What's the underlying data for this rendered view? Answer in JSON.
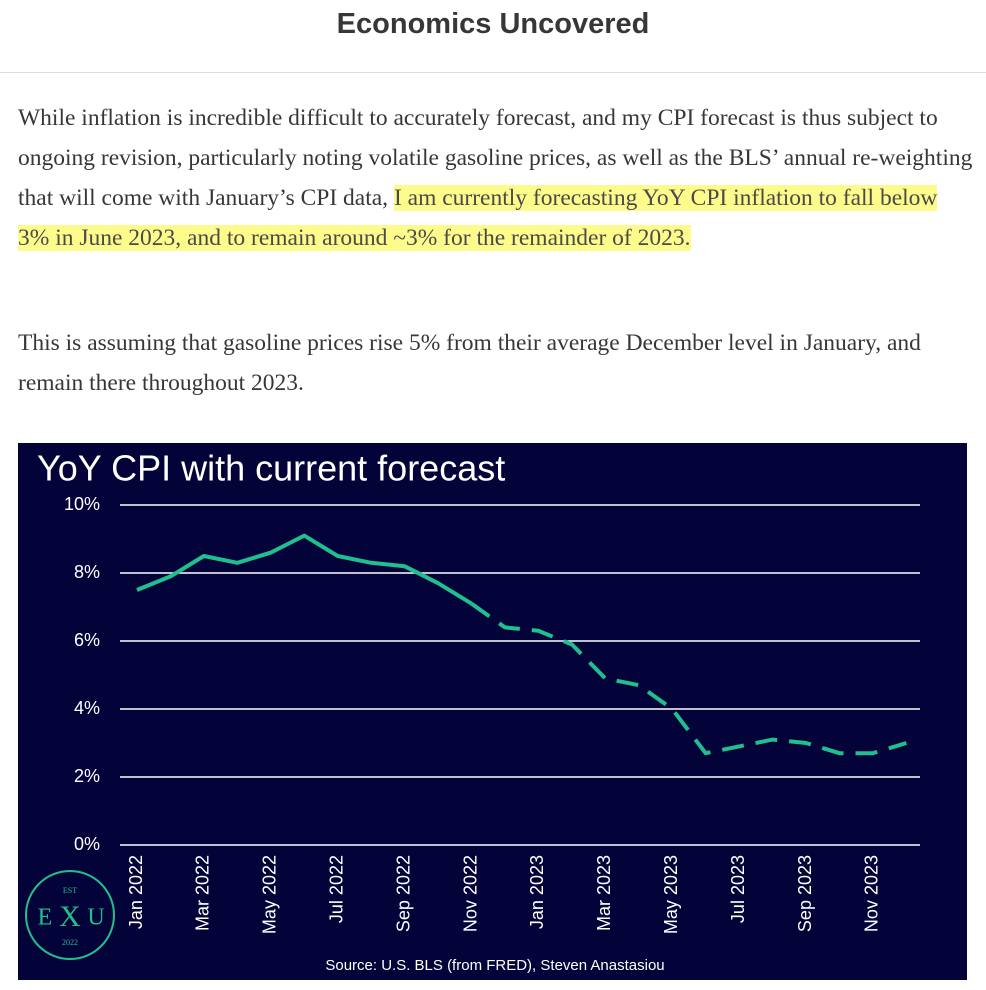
{
  "header": {
    "title": "Economics Uncovered"
  },
  "paragraphs": [
    {
      "text": "While inflation is incredible difficult to accurately forecast, and my CPI forecast is thus subject to ongoing revision, particularly noting volatile gasoline prices, as well as the BLS’ annual re-weighting that will come with January’s CPI data,",
      "highlight": "I am currently forecasting YoY CPI inflation to fall below 3% in June 2023, and to remain around ~3% for the remainder of 2023."
    },
    "This is assuming that gasoline prices rise 5% from their average December level in January, and remain there throughout 2023."
  ],
  "chart_data": {
    "type": "line",
    "title": "YoY CPI with current forecast",
    "categories": [
      "Jan 2022",
      null,
      "Mar 2022",
      null,
      "May 2022",
      null,
      "Jul 2022",
      null,
      "Sep 2022",
      null,
      "Nov 2022",
      null,
      "Jan 2023",
      null,
      "Mar 2023",
      null,
      "May 2023",
      null,
      "Jul 2023",
      null,
      "Sep 2023",
      null,
      "Nov 2023",
      null
    ],
    "series": [
      {
        "color": "#1fbf8f",
        "dashed": false,
        "values": [
          7.5,
          7.9,
          8.5,
          8.3,
          8.6,
          9.1,
          8.5,
          8.3,
          8.2,
          7.7,
          7.1,
          null,
          null,
          null,
          null,
          null,
          null,
          null,
          null,
          null,
          null,
          null,
          null,
          null
        ]
      },
      {
        "color": "#1fbf8f",
        "dashed": true,
        "values": [
          null,
          null,
          null,
          null,
          null,
          null,
          null,
          null,
          null,
          null,
          7.1,
          6.4,
          6.3,
          5.9,
          4.9,
          4.7,
          4.0,
          2.7,
          2.9,
          3.1,
          3.0,
          2.7,
          2.7,
          3.0
        ]
      }
    ],
    "ylim": [
      0,
      10
    ],
    "yticks": [
      {
        "value": 0,
        "label": "0%"
      },
      {
        "value": 2,
        "label": "2%"
      },
      {
        "value": 4,
        "label": "4%"
      },
      {
        "value": 6,
        "label": "6%"
      },
      {
        "value": 8,
        "label": "8%"
      },
      {
        "value": 10,
        "label": "10%"
      }
    ],
    "grid": true,
    "source": "Source: U.S. BLS (from FRED), Steven Anastasiou",
    "logo": {
      "top": "EST",
      "left": "E",
      "middle": "X",
      "right": "U",
      "bottom": "2022"
    }
  }
}
